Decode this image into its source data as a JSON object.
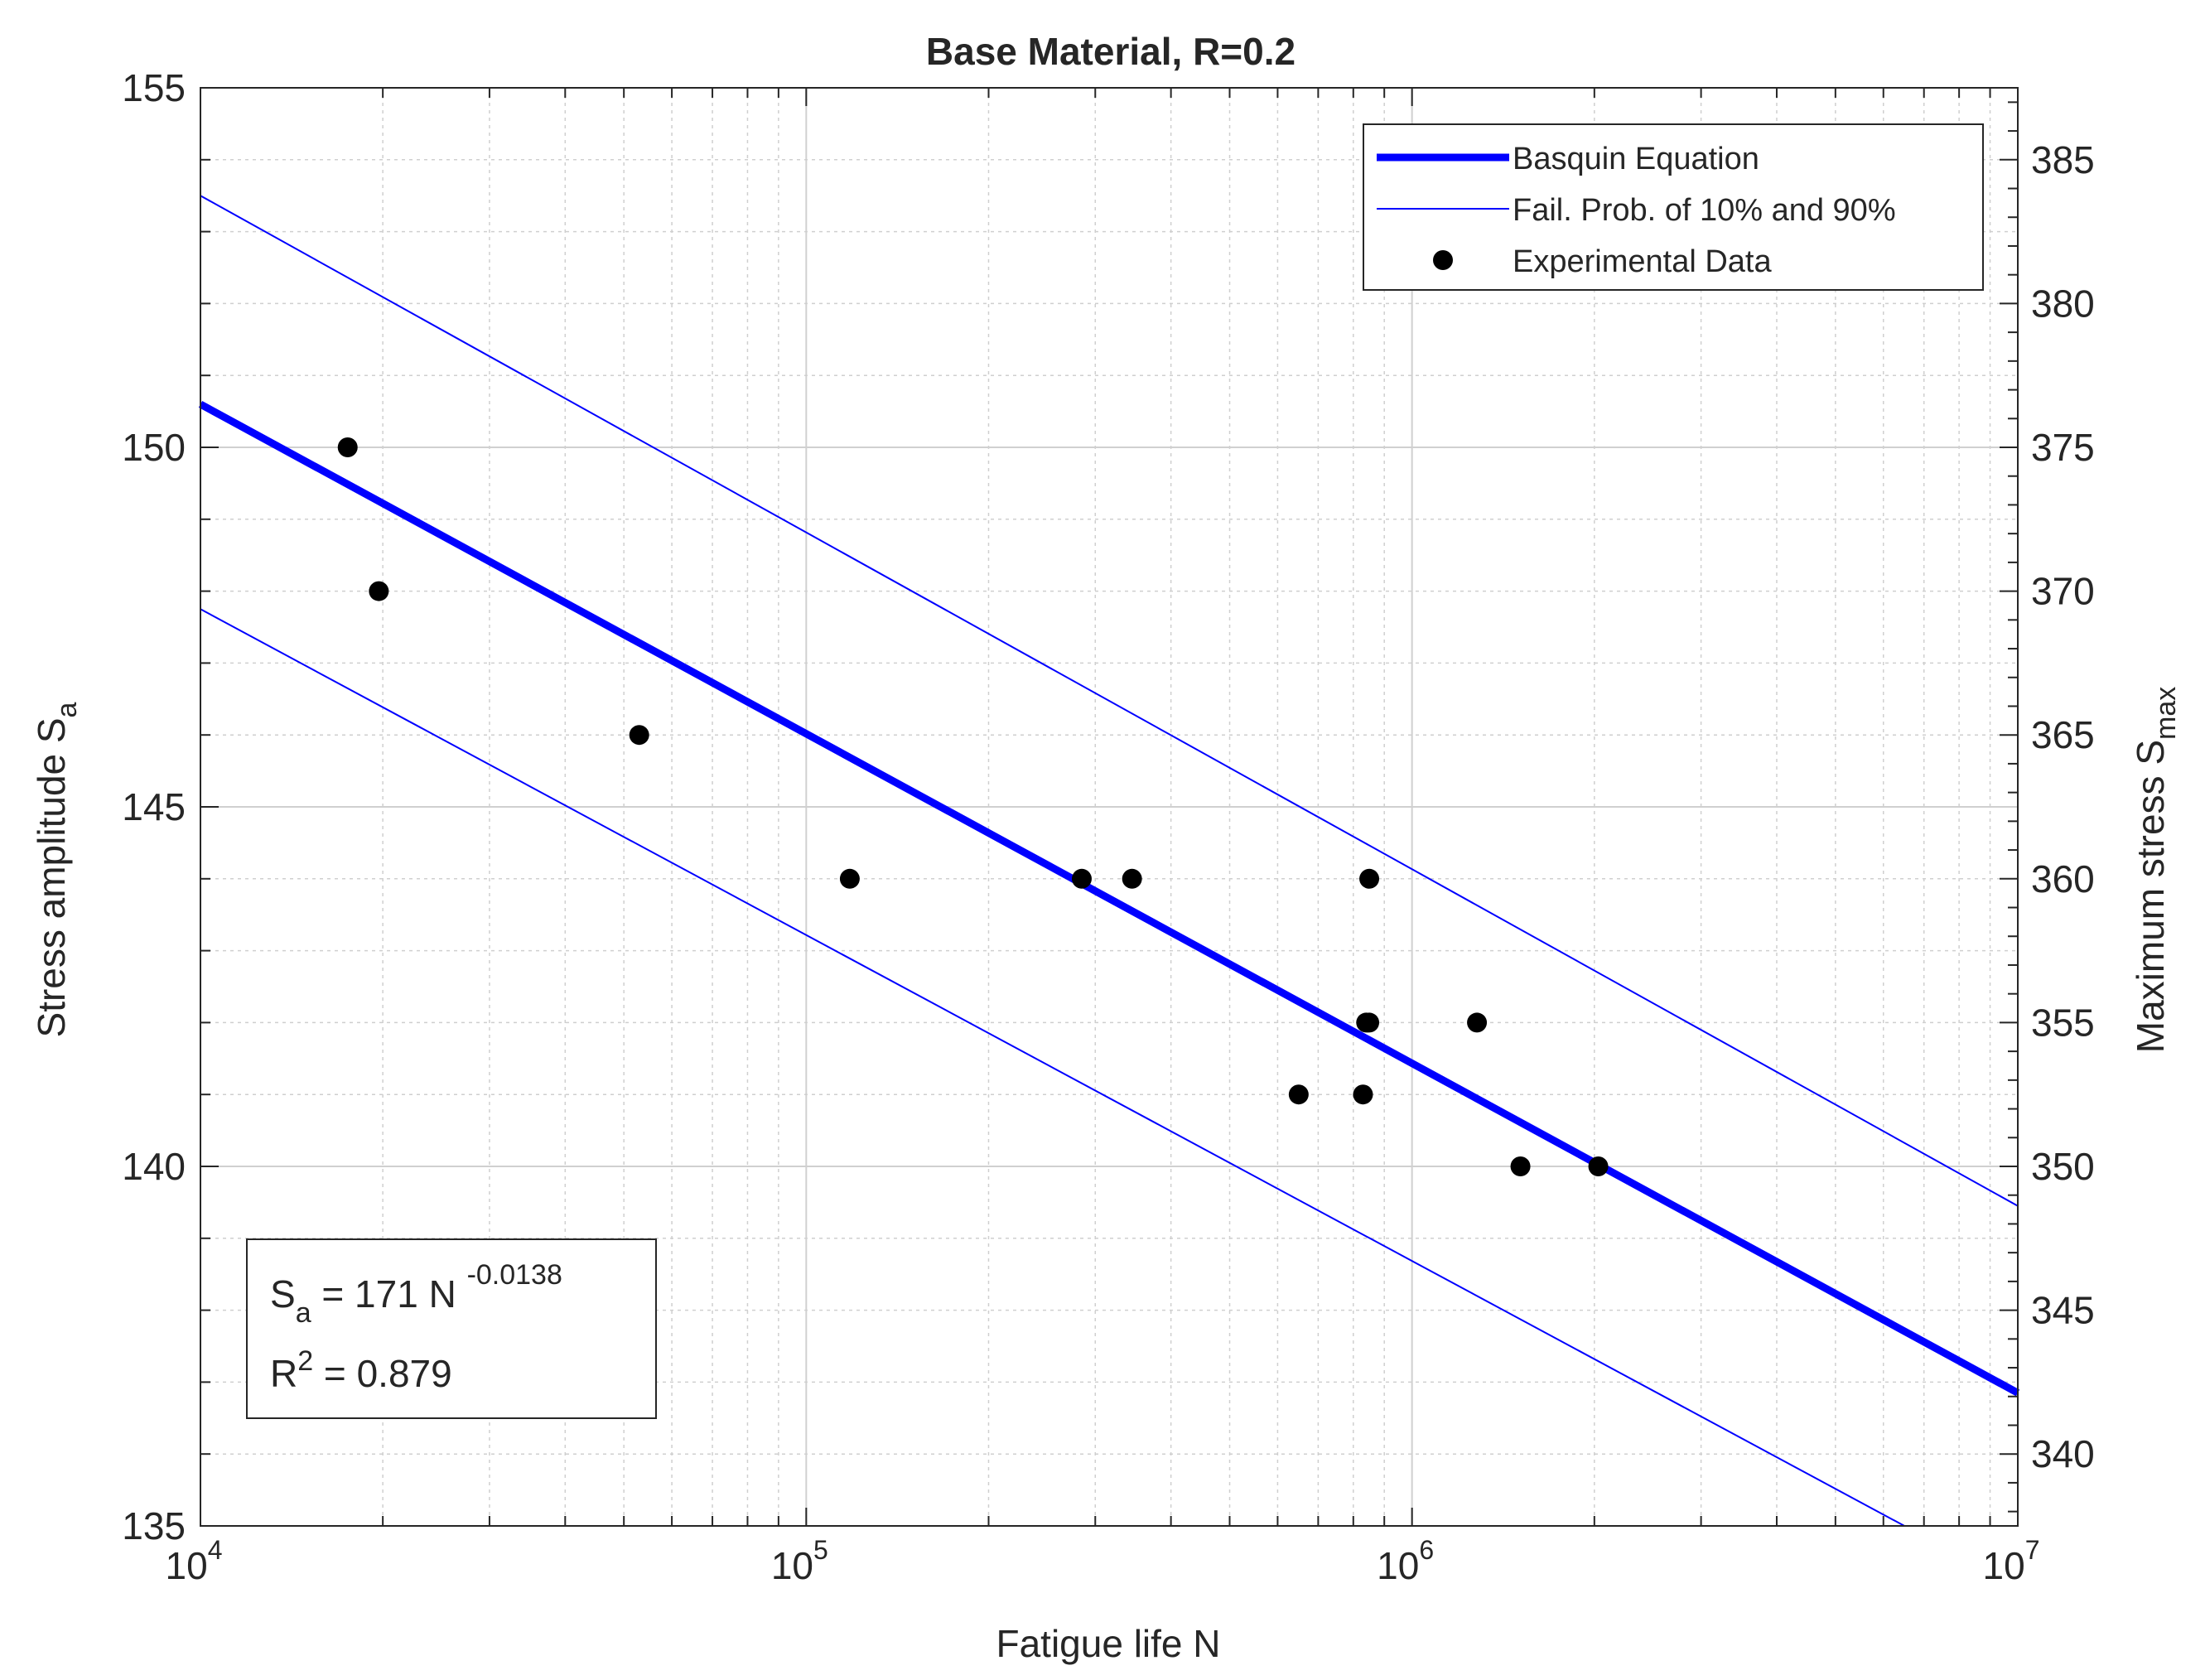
{
  "chart_data": {
    "type": "scatter",
    "title": "Base Material, R=0.2",
    "xlabel": "Fatigue life N",
    "ylabel": "Stress amplitude S",
    "ylabel_sub": "a",
    "y2label": "Maximum stress S",
    "y2label_sub": "max",
    "x_scale": "log",
    "xlim": [
      10000,
      10000000
    ],
    "ylim": [
      135,
      155
    ],
    "y2lim": [
      337.5,
      387.5
    ],
    "grid": true,
    "minor_grid": true,
    "x_ticks": [
      {
        "value": 10000,
        "base": "10",
        "exp": "4"
      },
      {
        "value": 100000,
        "base": "10",
        "exp": "5"
      },
      {
        "value": 1000000,
        "base": "10",
        "exp": "6"
      },
      {
        "value": 10000000,
        "base": "10",
        "exp": "7"
      }
    ],
    "y_ticks": [
      135,
      140,
      145,
      150,
      155
    ],
    "y2_ticks": [
      340,
      345,
      350,
      355,
      360,
      365,
      370,
      375,
      380,
      385
    ],
    "legend_position": "top-right",
    "series": [
      {
        "name": "Basquin Equation",
        "kind": "line",
        "color": "#0000ff",
        "width": "thick",
        "x": [
          10000,
          10000000
        ],
        "y": [
          150.6,
          136.85
        ]
      },
      {
        "name": "Fail. Prob. of 10% and 90%",
        "kind": "line",
        "color": "#0000ff",
        "width": "thin",
        "x": [
          10000,
          10000000
        ],
        "y": [
          153.5,
          139.45
        ]
      },
      {
        "name": "",
        "kind": "line",
        "color": "#0000ff",
        "width": "thin",
        "x": [
          10000,
          6500000
        ],
        "y": [
          147.75,
          135
        ]
      },
      {
        "name": "Experimental Data",
        "kind": "scatter",
        "color": "#000000",
        "x": [
          17500,
          19700,
          53000,
          118000,
          285000,
          345000,
          650000,
          830000,
          840000,
          850000,
          850000,
          1280000,
          1510000,
          2030000
        ],
        "y": [
          150,
          148,
          146,
          144,
          144,
          144,
          141,
          141,
          142,
          142,
          144,
          142,
          140,
          140
        ]
      }
    ],
    "annotation": {
      "line1_prefix": "S",
      "line1_sub": "a",
      "line1_main": " = 171 N ",
      "line1_exp": "-0.0138",
      "line2_prefix": "R",
      "line2_sup": "2",
      "line2_main": " = 0.879"
    }
  }
}
